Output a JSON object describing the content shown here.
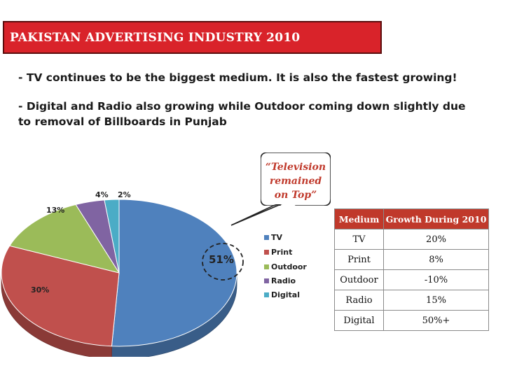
{
  "title": "PAKISTAN ADVERTISING INDUSTRY 2010",
  "bullets": [
    "- TV continues to be the biggest medium. It is also the fastest growing!",
    "- Digital and Radio also growing while Outdoor coming down slightly due to removal of Billboards in Punjab"
  ],
  "callout": [
    "“Television",
    "remained",
    "on Top”"
  ],
  "colors": {
    "title_bg": "#d9232a",
    "table_header_bg": "#c0392b",
    "callout_text": "#c0392b"
  },
  "chart_data": {
    "type": "pie",
    "title": "",
    "series": [
      {
        "name": "TV",
        "value": 51,
        "label": "51%",
        "color": "#4f81bd"
      },
      {
        "name": "Print",
        "value": 30,
        "label": "30%",
        "color": "#c0504d"
      },
      {
        "name": "Outdoor",
        "value": 13,
        "label": "13%",
        "color": "#9bbb59"
      },
      {
        "name": "Radio",
        "value": 4,
        "label": "4%",
        "color": "#8064a2"
      },
      {
        "name": "Digital",
        "value": 2,
        "label": "2%",
        "color": "#4bacc6"
      }
    ],
    "legend_position": "right",
    "style": "3d-tilted"
  },
  "table": {
    "headers": [
      "Medium",
      "Growth During 2010"
    ],
    "rows": [
      [
        "TV",
        "20%"
      ],
      [
        "Print",
        "8%"
      ],
      [
        "Outdoor",
        "-10%"
      ],
      [
        "Radio",
        "15%"
      ],
      [
        "Digital",
        "50%+"
      ]
    ]
  }
}
